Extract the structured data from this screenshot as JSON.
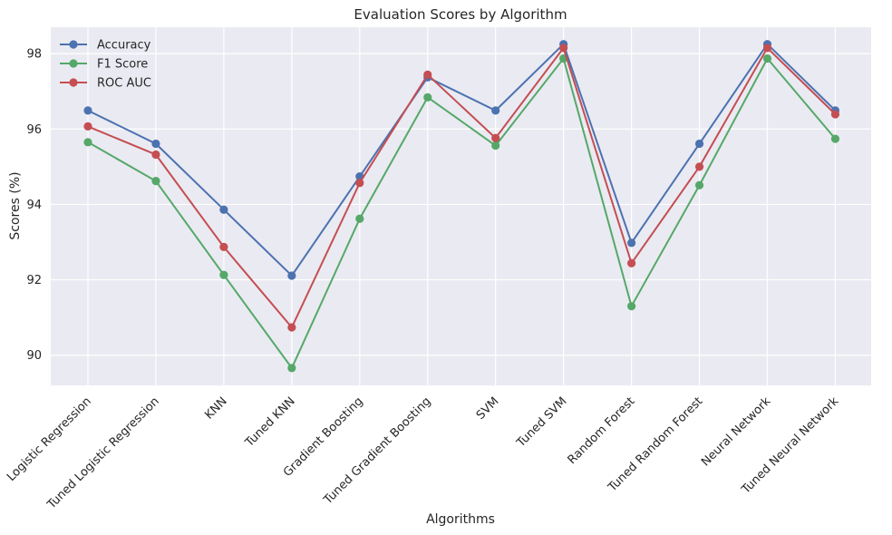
{
  "chart_data": {
    "type": "line",
    "title": "Evaluation Scores by Algorithm",
    "xlabel": "Algorithms",
    "ylabel": "Scores (%)",
    "ylim": [
      89.2,
      98.7
    ],
    "yticks": [
      90,
      92,
      94,
      96,
      98
    ],
    "grid": true,
    "legend_position": "top-left",
    "categories": [
      "Logistic Regression",
      "Tuned Logistic Regression",
      "KNN",
      "Tuned KNN",
      "Gradient Boosting",
      "Tuned Gradient Boosting",
      "SVM",
      "Tuned SVM",
      "Random Forest",
      "Tuned Random Forest",
      "Neural Network",
      "Tuned Neural Network"
    ],
    "series": [
      {
        "name": "Accuracy",
        "color": "#4c72b0",
        "values": [
          96.49,
          95.61,
          93.86,
          92.11,
          94.74,
          97.37,
          96.49,
          98.25,
          92.98,
          95.61,
          98.25,
          96.49
        ]
      },
      {
        "name": "F1 Score",
        "color": "#55a868",
        "values": [
          95.65,
          94.62,
          92.13,
          89.66,
          93.62,
          96.84,
          95.56,
          97.87,
          91.3,
          94.51,
          97.87,
          95.74
        ]
      },
      {
        "name": "ROC AUC",
        "color": "#c44e52",
        "values": [
          96.07,
          95.32,
          92.87,
          90.74,
          94.57,
          97.44,
          95.76,
          98.15,
          92.44,
          95.0,
          98.15,
          96.39
        ]
      }
    ]
  }
}
